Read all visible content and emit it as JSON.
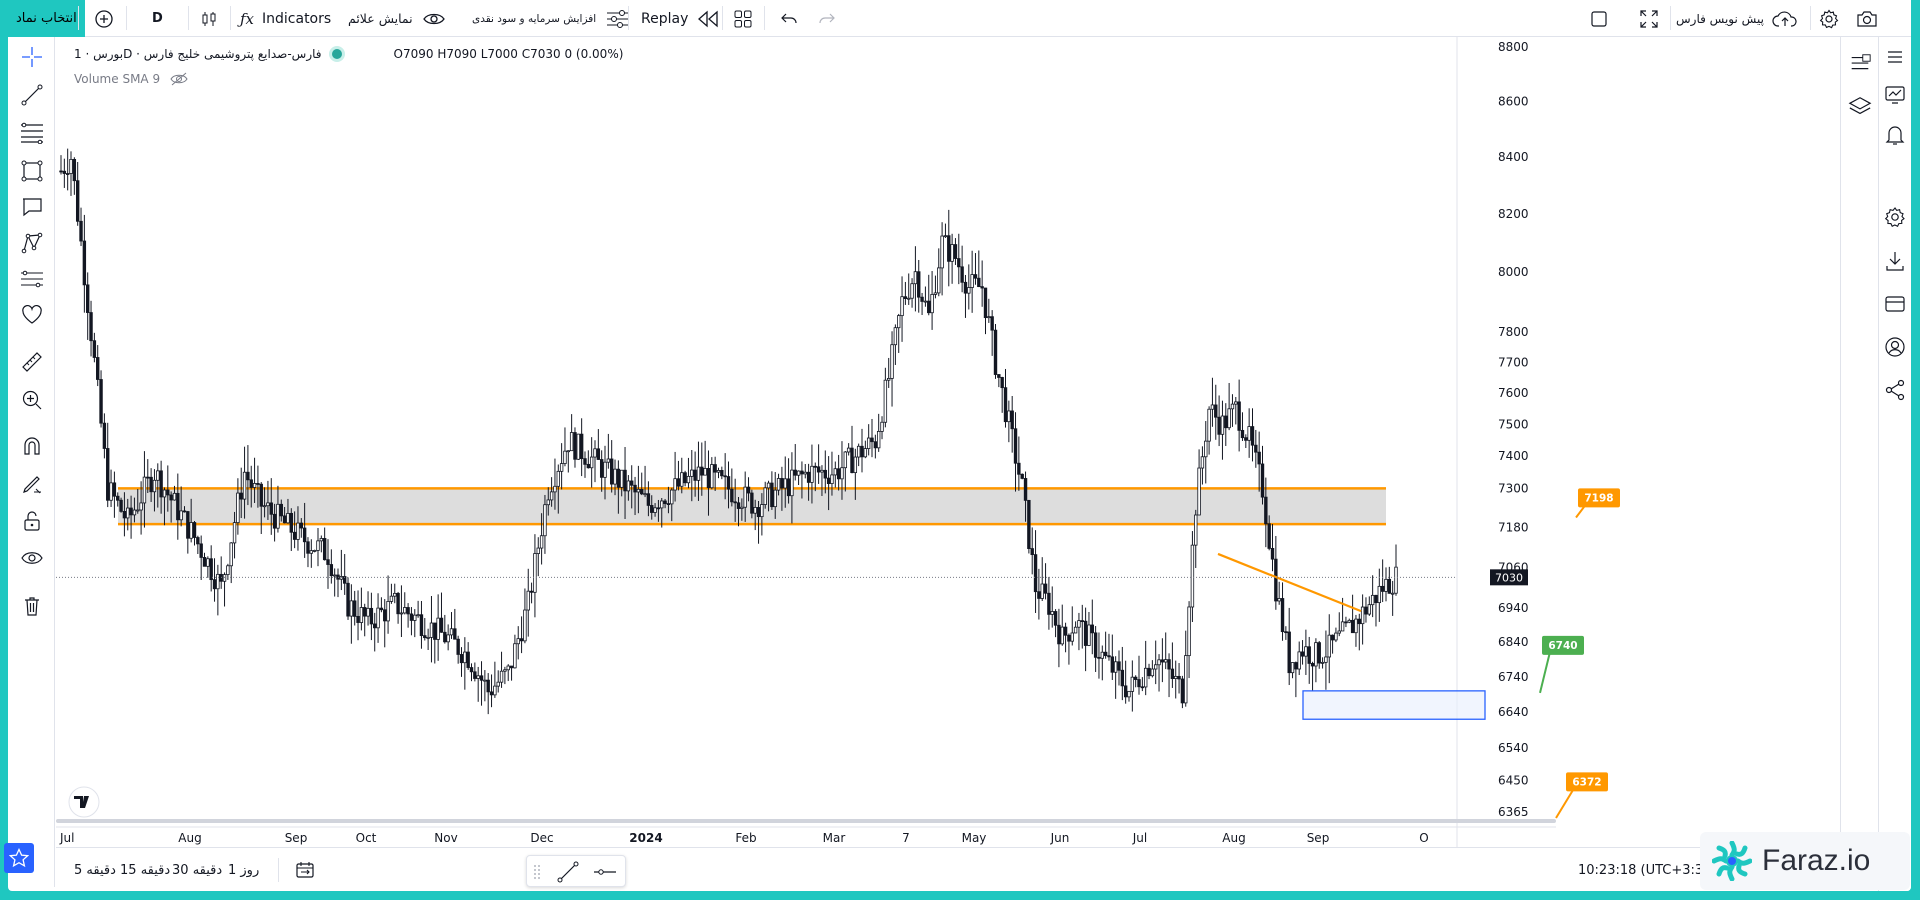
{
  "topbar": {
    "symbol_button": "انتخاب نماد",
    "interval": "D",
    "indicators": "Indicators",
    "show_signals": "نمایش علائم",
    "capital_increase": "افزایش سرمایه و سود نقدی",
    "replay": "Replay",
    "pre_invoice": "پیش نویس فارس"
  },
  "legend": {
    "title": "بورس · 1D · فارس-صدایع پتروشیمی خلیج فارس",
    "ohlc": "O7090  H7090  L7000  C7030  0 (0.00%)",
    "volume": "Volume SMA 9"
  },
  "chart_data": {
    "type": "candlestick",
    "symbol": "فارس-صدایع پتروشیمی خلیج فارس",
    "interval": "1D",
    "y_axis_labels": [
      8800,
      8600,
      8400,
      8200,
      8000,
      7800,
      7700,
      7600,
      7500,
      7400,
      7300,
      7180,
      7060,
      6940,
      6840,
      6740,
      6640,
      6540,
      6450,
      6365
    ],
    "y_scale": "log",
    "x_axis_labels": [
      "Jul",
      "Aug",
      "Sep",
      "Oct",
      "Nov",
      "Dec",
      "2024",
      "Feb",
      "Mar",
      "7",
      "May",
      "Jun",
      "Jul",
      "Aug",
      "Sep",
      "O"
    ],
    "last_price": "7030",
    "zone": {
      "upper": 7300,
      "lower": 7190,
      "color": "#ff9800"
    },
    "labels": [
      {
        "text": "7198",
        "color": "#ff9800"
      },
      {
        "text": "6740",
        "color": "#4caf50"
      },
      {
        "text": "6372",
        "color": "#ff9800"
      }
    ],
    "price_path": [
      [
        0,
        8350
      ],
      [
        3,
        8400
      ],
      [
        8,
        7900
      ],
      [
        14,
        7300
      ],
      [
        20,
        7200
      ],
      [
        28,
        7350
      ],
      [
        34,
        7250
      ],
      [
        40,
        7150
      ],
      [
        48,
        7000
      ],
      [
        55,
        7350
      ],
      [
        60,
        7250
      ],
      [
        66,
        7200
      ],
      [
        72,
        7150
      ],
      [
        80,
        7100
      ],
      [
        86,
        6950
      ],
      [
        92,
        6900
      ],
      [
        100,
        6950
      ],
      [
        108,
        6900
      ],
      [
        116,
        6850
      ],
      [
        122,
        6800
      ],
      [
        128,
        6700
      ],
      [
        134,
        6750
      ],
      [
        140,
        6950
      ],
      [
        146,
        7300
      ],
      [
        152,
        7450
      ],
      [
        158,
        7400
      ],
      [
        164,
        7350
      ],
      [
        170,
        7300
      ],
      [
        176,
        7250
      ],
      [
        184,
        7300
      ],
      [
        192,
        7350
      ],
      [
        200,
        7300
      ],
      [
        208,
        7250
      ],
      [
        216,
        7300
      ],
      [
        224,
        7350
      ],
      [
        232,
        7350
      ],
      [
        238,
        7400
      ],
      [
        244,
        7450
      ],
      [
        248,
        7650
      ],
      [
        252,
        7900
      ],
      [
        256,
        8000
      ],
      [
        260,
        7850
      ],
      [
        264,
        8100
      ],
      [
        268,
        8050
      ],
      [
        272,
        7950
      ],
      [
        276,
        7950
      ],
      [
        280,
        7700
      ],
      [
        284,
        7500
      ],
      [
        288,
        7300
      ],
      [
        292,
        7000
      ],
      [
        296,
        6950
      ],
      [
        300,
        6850
      ],
      [
        304,
        6900
      ],
      [
        308,
        6850
      ],
      [
        312,
        6800
      ],
      [
        316,
        6750
      ],
      [
        320,
        6700
      ],
      [
        324,
        6750
      ],
      [
        328,
        6800
      ],
      [
        332,
        6750
      ],
      [
        336,
        6700
      ],
      [
        340,
        7250
      ],
      [
        344,
        7550
      ],
      [
        348,
        7500
      ],
      [
        352,
        7550
      ],
      [
        356,
        7450
      ],
      [
        360,
        7300
      ],
      [
        364,
        7000
      ],
      [
        368,
        6780
      ],
      [
        372,
        6820
      ],
      [
        376,
        6800
      ],
      [
        380,
        6820
      ],
      [
        384,
        6860
      ],
      [
        388,
        6900
      ],
      [
        392,
        6950
      ],
      [
        396,
        7000
      ],
      [
        400,
        7030
      ]
    ]
  },
  "bottombar": {
    "tf_5m": "5 دقیقه",
    "tf_15m": "15 دقیقه",
    "tf_30m": "30 دقیقه",
    "tf_1d": "1 روز",
    "clock": "10:23:18 (UTC+3:30)"
  },
  "brand": {
    "name": "Faraz.io"
  }
}
